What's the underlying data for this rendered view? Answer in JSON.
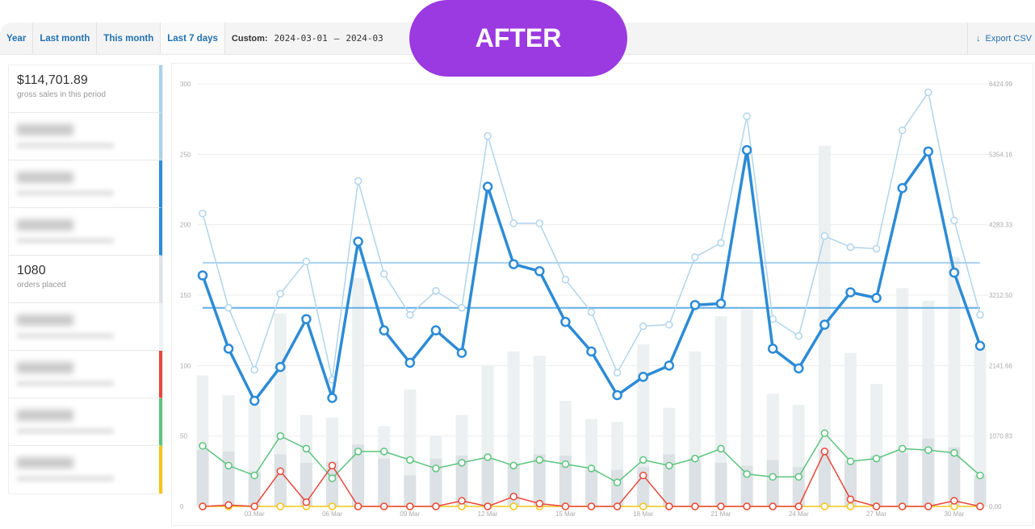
{
  "badge": "AFTER",
  "tabs": [
    {
      "label": "Year"
    },
    {
      "label": "Last month"
    },
    {
      "label": "This month"
    },
    {
      "label": "Last 7 days"
    }
  ],
  "custom": {
    "label": "Custom:",
    "start": "2024-03-01",
    "sep": "–",
    "end": "2024-03"
  },
  "export": {
    "icon": "download-icon",
    "label": "Export CSV"
  },
  "sidebar": {
    "items": [
      {
        "value": "$114,701.89",
        "label": "gross sales in this period",
        "color": "#a8d1ee",
        "blurred": false
      },
      {
        "blurred": true,
        "color": "#a8d1ee"
      },
      {
        "blurred": true,
        "color": "#2e8ed8"
      },
      {
        "blurred": true,
        "color": "#2e8ed8"
      },
      {
        "value": "1080",
        "label": "orders placed",
        "color": "#dde3e8",
        "blurred": false
      },
      {
        "blurred": true,
        "color": "#eef2f5"
      },
      {
        "blurred": true,
        "color": "#e8473b"
      },
      {
        "blurred": true,
        "color": "#5cc47e"
      },
      {
        "blurred": true,
        "color": "#f5c518"
      }
    ]
  },
  "chart_data": {
    "type": "line",
    "x": [
      "01 Mar",
      "02 Mar",
      "03 Mar",
      "04 Mar",
      "05 Mar",
      "06 Mar",
      "07 Mar",
      "08 Mar",
      "09 Mar",
      "10 Mar",
      "11 Mar",
      "12 Mar",
      "13 Mar",
      "14 Mar",
      "15 Mar",
      "16 Mar",
      "17 Mar",
      "18 Mar",
      "19 Mar",
      "20 Mar",
      "21 Mar",
      "22 Mar",
      "23 Mar",
      "24 Mar",
      "25 Mar",
      "26 Mar",
      "27 Mar",
      "28 Mar",
      "29 Mar",
      "30 Mar",
      "31 Mar"
    ],
    "x_tick_labels": [
      "03 Mar",
      "06 Mar",
      "09 Mar",
      "12 Mar",
      "15 Mar",
      "18 Mar",
      "21 Mar",
      "24 Mar",
      "27 Mar",
      "30 Mar"
    ],
    "x_tick_index": [
      2,
      5,
      8,
      11,
      14,
      17,
      20,
      23,
      26,
      29
    ],
    "y_left": {
      "ticks": [
        "0",
        "50",
        "100",
        "150",
        "200",
        "250",
        "300"
      ],
      "range": [
        0,
        300
      ]
    },
    "y_right": {
      "ticks": [
        "0.00",
        "1070.83",
        "2141.66",
        "3212.50",
        "4283.33",
        "5354.16",
        "6424.99"
      ],
      "range": [
        0,
        6424.99
      ]
    },
    "bars": [
      {
        "name": "bar-total",
        "color": "#ecf0f1",
        "values": [
          1992,
          1692,
          1542,
          2934,
          1392,
          1349,
          3470,
          1221,
          1778,
          1071,
          1392,
          2142,
          2356,
          2292,
          1606,
          1328,
          1285,
          2463,
          1499,
          2356,
          2891,
          2998,
          1713,
          1542,
          5483,
          2334,
          1863,
          3320,
          3127,
          3791,
          2399
        ]
      },
      {
        "name": "bar-part",
        "color": "#dbe1e4",
        "values": [
          857,
          835,
          535,
          792,
          664,
          685,
          942,
          728,
          471,
          728,
          771,
          728,
          642,
          792,
          771,
          557,
          557,
          600,
          792,
          728,
          664,
          621,
          707,
          600,
          857,
          685,
          771,
          814,
          1028,
          899,
          471
        ]
      }
    ],
    "series": [
      {
        "name": "light-blue",
        "color": "#b1d4ec",
        "width": 1.5,
        "values": [
          208,
          141,
          97,
          151,
          174,
          90,
          231,
          165,
          136,
          153,
          141,
          263,
          201,
          201,
          161,
          138,
          95,
          128,
          129,
          177,
          187,
          277,
          133,
          121,
          192,
          184,
          183,
          267,
          294,
          203,
          136
        ]
      },
      {
        "name": "dark-blue",
        "color": "#2c8bd6",
        "width": 3.5,
        "values": [
          164,
          112,
          75,
          99,
          133,
          77,
          188,
          125,
          102,
          125,
          109,
          227,
          172,
          167,
          131,
          110,
          79,
          92,
          100,
          143,
          144,
          253,
          112,
          98,
          129,
          152,
          148,
          226,
          252,
          166,
          114
        ]
      },
      {
        "name": "green",
        "color": "#5cc47e",
        "width": 1.5,
        "values": [
          43,
          29,
          22,
          50,
          41,
          20,
          39,
          39,
          33,
          27,
          31,
          35,
          29,
          33,
          30,
          27,
          17,
          33,
          29,
          34,
          41,
          23,
          21,
          21,
          52,
          32,
          34,
          41,
          40,
          38,
          22
        ]
      },
      {
        "name": "yellow",
        "color": "#f5c518",
        "width": 1.5,
        "values": [
          0,
          0,
          0,
          0,
          0,
          0,
          0,
          0,
          0,
          0,
          0,
          0,
          0,
          0,
          0,
          0,
          0,
          0,
          0,
          0,
          0,
          0,
          0,
          0,
          0,
          0,
          0,
          0,
          0,
          0,
          0
        ]
      },
      {
        "name": "red",
        "color": "#e8473b",
        "width": 1.5,
        "values": [
          0,
          1,
          0,
          25,
          3,
          29,
          0,
          0,
          0,
          0,
          4,
          0,
          7,
          2,
          0,
          0,
          0,
          22,
          0,
          0,
          0,
          0,
          0,
          0,
          39,
          5,
          0,
          0,
          0,
          4,
          0
        ]
      }
    ],
    "avg_lines": [
      {
        "name": "light-blue-average",
        "value": 173,
        "color": "#a8d1ee"
      },
      {
        "name": "dark-blue-average",
        "value": 141,
        "color": "#62aee6"
      }
    ],
    "grid": true
  }
}
